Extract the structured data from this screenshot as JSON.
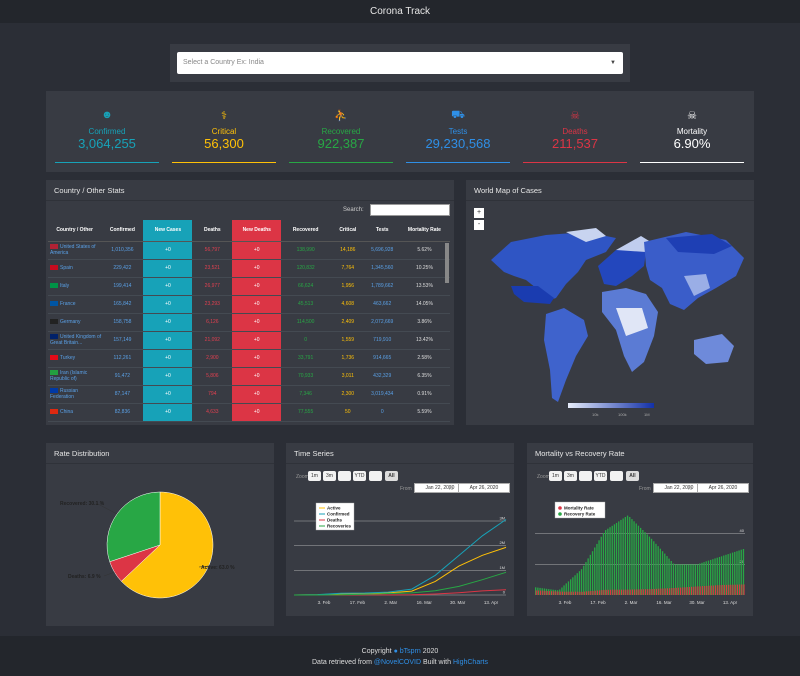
{
  "app": {
    "title": "Corona Track"
  },
  "search": {
    "placeholder": "Select a Country Ex: India"
  },
  "stats": [
    {
      "label": "Confirmed",
      "value": "3,064,255",
      "color": "#17a2b8",
      "icon": "head-side-cough-icon",
      "glyph": "☻"
    },
    {
      "label": "Critical",
      "value": "56,300",
      "color": "#ffc107",
      "icon": "hospital-user-icon",
      "glyph": "⚕"
    },
    {
      "label": "Recovered",
      "value": "922,387",
      "color": "#28a745",
      "icon": "running-icon",
      "glyph": "⛹"
    },
    {
      "label": "Tests",
      "value": "29,230,568",
      "color": "#2f8fe6",
      "icon": "ambulance-icon",
      "glyph": "⛟"
    },
    {
      "label": "Deaths",
      "value": "211,537",
      "color": "#dc3545",
      "icon": "bed-icon",
      "glyph": "☠"
    },
    {
      "label": "Mortality",
      "value": "6.90%",
      "color": "#ffffff",
      "icon": "skull-crossbones-icon",
      "glyph": "☠"
    }
  ],
  "country_table": {
    "title": "Country / Other Stats",
    "search_label": "Search:",
    "columns": [
      "Country / Other",
      "Confirmed",
      "New Cases",
      "Deaths",
      "New Deaths",
      "Recovered",
      "Critical",
      "Tests",
      "Mortality Rate"
    ],
    "rows": [
      {
        "country": "United States of America",
        "flag": "us",
        "confirmed": "1,010,356",
        "new_cases": "+0",
        "deaths": "56,797",
        "new_deaths": "+0",
        "recovered": "138,990",
        "critical": "14,186",
        "tests": "5,696,928",
        "mortality": "5.62%"
      },
      {
        "country": "Spain",
        "flag": "es",
        "confirmed": "229,422",
        "new_cases": "+0",
        "deaths": "23,521",
        "new_deaths": "+0",
        "recovered": "120,832",
        "critical": "7,764",
        "tests": "1,345,560",
        "mortality": "10.25%"
      },
      {
        "country": "Italy",
        "flag": "it",
        "confirmed": "199,414",
        "new_cases": "+0",
        "deaths": "26,977",
        "new_deaths": "+0",
        "recovered": "66,624",
        "critical": "1,956",
        "tests": "1,789,662",
        "mortality": "13.53%"
      },
      {
        "country": "France",
        "flag": "fr",
        "confirmed": "165,842",
        "new_cases": "+0",
        "deaths": "23,293",
        "new_deaths": "+0",
        "recovered": "45,513",
        "critical": "4,608",
        "tests": "463,662",
        "mortality": "14.05%"
      },
      {
        "country": "Germany",
        "flag": "de",
        "confirmed": "158,758",
        "new_cases": "+0",
        "deaths": "6,126",
        "new_deaths": "+0",
        "recovered": "114,500",
        "critical": "2,409",
        "tests": "2,072,669",
        "mortality": "3.86%"
      },
      {
        "country": "United Kingdom of Great Britain...",
        "flag": "gb",
        "confirmed": "157,149",
        "new_cases": "+0",
        "deaths": "21,092",
        "new_deaths": "+0",
        "recovered": "0",
        "critical": "1,559",
        "tests": "719,910",
        "mortality": "13.42%"
      },
      {
        "country": "Turkey",
        "flag": "tr",
        "confirmed": "112,261",
        "new_cases": "+0",
        "deaths": "2,900",
        "new_deaths": "+0",
        "recovered": "33,791",
        "critical": "1,736",
        "tests": "914,665",
        "mortality": "2.58%"
      },
      {
        "country": "Iran (Islamic Republic of)",
        "flag": "ir",
        "confirmed": "91,472",
        "new_cases": "+0",
        "deaths": "5,806",
        "new_deaths": "+0",
        "recovered": "70,933",
        "critical": "3,011",
        "tests": "432,329",
        "mortality": "6.35%"
      },
      {
        "country": "Russian Federation",
        "flag": "ru",
        "confirmed": "87,147",
        "new_cases": "+0",
        "deaths": "794",
        "new_deaths": "+0",
        "recovered": "7,346",
        "critical": "2,300",
        "tests": "3,019,434",
        "mortality": "0.91%"
      },
      {
        "country": "China",
        "flag": "cn",
        "confirmed": "82,836",
        "new_cases": "+0",
        "deaths": "4,633",
        "new_deaths": "+0",
        "recovered": "77,555",
        "critical": "50",
        "tests": "0",
        "mortality": "5.59%"
      }
    ]
  },
  "world_map": {
    "title": "World Map of Cases",
    "zoom_in": "+",
    "zoom_out": "-",
    "legend_ticks": [
      "10k",
      "100k",
      "1M"
    ]
  },
  "rate_distribution": {
    "title": "Rate Distribution",
    "chart_data": {
      "type": "pie",
      "slices": [
        {
          "label": "Active: 63.0 %",
          "value": 63.0,
          "color": "#ffc107"
        },
        {
          "label": "Deaths: 6.9 %",
          "value": 6.9,
          "color": "#dc3545"
        },
        {
          "label": "Recovered: 30.1 %",
          "value": 30.1,
          "color": "#28a745"
        }
      ]
    }
  },
  "time_series": {
    "title": "Time Series",
    "zoom_label": "Zoom",
    "range_buttons": [
      "1m",
      "3m",
      "",
      "YTD",
      "",
      "All"
    ],
    "from_label": "From",
    "to_label": "To",
    "from_date": "Jan 22, 2020",
    "to_date": "Apr 26, 2020",
    "chart_data": {
      "type": "line",
      "x_ticks": [
        "3. Feb",
        "17. Feb",
        "2. Mar",
        "16. Mar",
        "30. Mar",
        "13. Apr"
      ],
      "y_ticks": [
        "0",
        "1M",
        "2M",
        "3M"
      ],
      "ylim": [
        0,
        3000000
      ],
      "legend": "top-left",
      "series": [
        {
          "name": "Active",
          "color": "#ffc107",
          "values": [
            0,
            10000,
            45000,
            60000,
            85000,
            160000,
            550000,
            1170000,
            1610000,
            1930000
          ]
        },
        {
          "name": "Confirmed",
          "color": "#17a2b8",
          "values": [
            555,
            17000,
            71000,
            82000,
            118000,
            240000,
            800000,
            1600000,
            2400000,
            3060000
          ]
        },
        {
          "name": "Deaths",
          "color": "#dc3545",
          "values": [
            17,
            360,
            1770,
            2800,
            4200,
            10000,
            39000,
            95000,
            165000,
            211000
          ]
        },
        {
          "name": "Recoveries",
          "color": "#28a745",
          "values": [
            28,
            500,
            12000,
            30000,
            60000,
            84000,
            170000,
            350000,
            620000,
            920000
          ]
        }
      ]
    }
  },
  "mortality_recovery": {
    "title": "Mortality vs Recovery Rate",
    "zoom_label": "Zoom",
    "range_buttons": [
      "1m",
      "3m",
      "",
      "YTD",
      "",
      "All"
    ],
    "from_label": "From",
    "to_label": "To",
    "from_date": "Jan 22, 2020",
    "to_date": "Apr 26, 2020",
    "chart_data": {
      "type": "bar",
      "x_ticks": [
        "3. Feb",
        "17. Feb",
        "2. Mar",
        "16. Mar",
        "30. Mar",
        "13. Apr"
      ],
      "y_ticks": [
        "20",
        "40"
      ],
      "ylim": [
        0,
        60
      ],
      "legend": "top-left",
      "series": [
        {
          "name": "Mortality Rate",
          "color": "#dc3545",
          "values": [
            3,
            2.2,
            2.1,
            3.4,
            3.5,
            3.9,
            4.6,
            5.6,
            6.5,
            6.9
          ]
        },
        {
          "name": "Recovery Rate",
          "color": "#28a745",
          "values": [
            5,
            3,
            17,
            42,
            52,
            37,
            20,
            20,
            25,
            30
          ]
        }
      ]
    }
  },
  "footer": {
    "copyright": "Copyright",
    "author": "bTsprn",
    "year": "2020",
    "retrieved": "Data retrieved from",
    "source": "@NovelCOVID",
    "built": "Built with",
    "lib": "HighCharts"
  }
}
